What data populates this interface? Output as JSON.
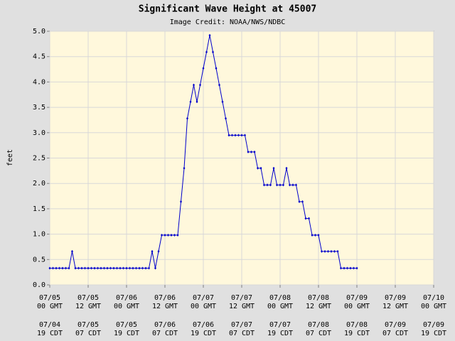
{
  "chart_data": {
    "type": "line",
    "title": "Significant Wave Height at 45007",
    "subtitle": "Image Credit: NOAA/NWS/NDBC",
    "y_label": "feet",
    "x": [
      0,
      1,
      2,
      3,
      4,
      5,
      6,
      7,
      8,
      9,
      10,
      11,
      12,
      13,
      14,
      15,
      16,
      17,
      18,
      19,
      20,
      21,
      22,
      23,
      24,
      25,
      26,
      27,
      28,
      29,
      30,
      31,
      32,
      33,
      34,
      35,
      36,
      37,
      38,
      39,
      40,
      41,
      42,
      43,
      44,
      45,
      46,
      47,
      48,
      49,
      50,
      51,
      52,
      53,
      54,
      55,
      56,
      57,
      58,
      59,
      60,
      61,
      62,
      63,
      64,
      65,
      66,
      67,
      68,
      69,
      70,
      71,
      72,
      73,
      74,
      75,
      76,
      77,
      78,
      79,
      80,
      81,
      82,
      83,
      84,
      85,
      86,
      87,
      88,
      89,
      90,
      91,
      92,
      93,
      94,
      95,
      96
    ],
    "series": [
      {
        "name": "Significant Wave Height",
        "color": "#0000cc",
        "values": [
          0.33,
          0.33,
          0.33,
          0.33,
          0.33,
          0.33,
          0.33,
          0.66,
          0.33,
          0.33,
          0.33,
          0.33,
          0.33,
          0.33,
          0.33,
          0.33,
          0.33,
          0.33,
          0.33,
          0.33,
          0.33,
          0.33,
          0.33,
          0.33,
          0.33,
          0.33,
          0.33,
          0.33,
          0.33,
          0.33,
          0.33,
          0.33,
          0.66,
          0.33,
          0.66,
          0.98,
          0.98,
          0.98,
          0.98,
          0.98,
          0.98,
          1.64,
          2.3,
          3.28,
          3.61,
          3.94,
          3.61,
          3.94,
          4.27,
          4.59,
          4.92,
          4.59,
          4.27,
          3.94,
          3.61,
          3.28,
          2.95,
          2.95,
          2.95,
          2.95,
          2.95,
          2.95,
          2.62,
          2.62,
          2.62,
          2.3,
          2.3,
          1.97,
          1.97,
          1.97,
          2.3,
          1.97,
          1.97,
          1.97,
          2.3,
          1.97,
          1.97,
          1.97,
          1.64,
          1.64,
          1.31,
          1.31,
          0.98,
          0.98,
          0.98,
          0.66,
          0.66,
          0.66,
          0.66,
          0.66,
          0.66,
          0.33,
          0.33,
          0.33,
          0.33,
          0.33,
          0.33
        ]
      }
    ],
    "xlim": [
      0,
      120
    ],
    "xticks": [
      {
        "value": 0,
        "label": "07/05"
      },
      {
        "value": 12,
        "label": "07/05"
      },
      {
        "value": 24,
        "label": "07/06"
      },
      {
        "value": 36,
        "label": "07/06"
      },
      {
        "value": 48,
        "label": "07/07"
      },
      {
        "value": 60,
        "label": "07/07"
      },
      {
        "value": 72,
        "label": "07/08"
      },
      {
        "value": 84,
        "label": "07/08"
      },
      {
        "value": 96,
        "label": "07/09"
      },
      {
        "value": 108,
        "label": "07/09"
      },
      {
        "value": 120,
        "label": "07/10"
      }
    ],
    "xtick_times_gmt": [
      "00 GMT",
      "12 GMT",
      "00 GMT",
      "12 GMT",
      "00 GMT",
      "12 GMT",
      "00 GMT",
      "12 GMT",
      "00 GMT",
      "12 GMT",
      "00 GMT"
    ],
    "xtick_dates_cdt": [
      "07/04",
      "07/05",
      "07/05",
      "07/06",
      "07/06",
      "07/07",
      "07/07",
      "07/08",
      "07/08",
      "07/09",
      "07/09"
    ],
    "xtick_times_cdt": [
      "19 CDT",
      "07 CDT",
      "19 CDT",
      "07 CDT",
      "19 CDT",
      "07 CDT",
      "19 CDT",
      "07 CDT",
      "19 CDT",
      "07 CDT",
      "19 CDT"
    ],
    "ylim": [
      0,
      5
    ],
    "yticks": [
      {
        "value": 0,
        "label": "0.0"
      },
      0.5,
      {
        "value": 1,
        "label": "1.0"
      },
      1.5,
      {
        "value": 2,
        "label": "2.0"
      },
      2.5,
      {
        "value": 3,
        "label": "3.0"
      },
      3.5,
      {
        "value": 4,
        "label": "4.0"
      },
      4.5,
      {
        "value": 5,
        "label": "5.0"
      }
    ],
    "grid": true
  }
}
